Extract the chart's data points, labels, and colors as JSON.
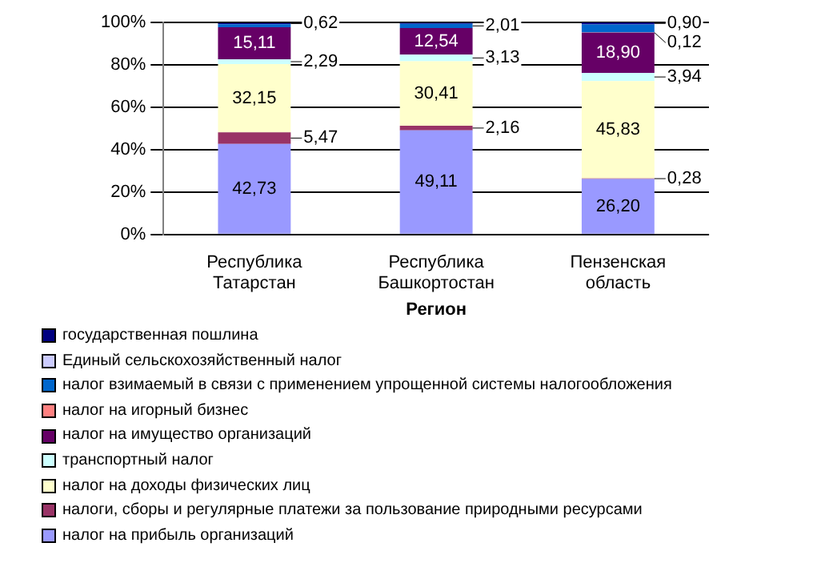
{
  "chart_data": {
    "type": "bar",
    "stacked": true,
    "xlabel": "Регион",
    "categories": [
      "Республика Татарстан",
      "Республика Башкортостан",
      "Пензенская область"
    ],
    "ylim": [
      0,
      100
    ],
    "yticks": [
      {
        "value": 0,
        "label": "0%"
      },
      {
        "value": 20,
        "label": "20%"
      },
      {
        "value": 40,
        "label": "40%"
      },
      {
        "value": 60,
        "label": "60%"
      },
      {
        "value": 80,
        "label": "80%"
      },
      {
        "value": 100,
        "label": "100%"
      }
    ],
    "grid": "y",
    "legend": "bottom left",
    "series": [
      {
        "name": "налог на прибыль организаций",
        "color": "#9999ff",
        "values": [
          42.73,
          49.11,
          26.2
        ],
        "value_labels": [
          "42,73",
          "49,11",
          "26,20"
        ]
      },
      {
        "name": "налоги, сборы и регулярные платежи за пользование природными ресурсами",
        "color": "#993366",
        "values": [
          5.47,
          2.16,
          0.28
        ],
        "value_labels": [
          "5,47",
          "2,16",
          "0,28"
        ]
      },
      {
        "name": "налог на доходы физических лиц",
        "color": "#ffffcc",
        "values": [
          32.15,
          30.41,
          45.83
        ],
        "value_labels": [
          "32,15",
          "30,41",
          "45,83"
        ]
      },
      {
        "name": "транспортный налог",
        "color": "#ccffff",
        "values": [
          2.29,
          3.13,
          3.94
        ],
        "value_labels": [
          "2,29",
          "3,13",
          "3,94"
        ]
      },
      {
        "name": "налог на имущество организаций",
        "color": "#660066",
        "values": [
          15.11,
          12.54,
          18.9
        ],
        "value_labels": [
          "15,11",
          "12,54",
          "18,90"
        ]
      },
      {
        "name": "налог на игорный бизнес",
        "color": "#ff8080",
        "values": [
          null,
          null,
          0.12
        ],
        "value_labels": [
          null,
          null,
          "0,12"
        ]
      },
      {
        "name": "налог  взимаемый в связи с применением упрощенной системы налогообложения",
        "color": "#0066cc",
        "values": [
          1.4,
          2.01,
          3.8
        ],
        "value_labels": [
          null,
          "2,01",
          null
        ]
      },
      {
        "name": "Единый сельскохозяйственный налог",
        "color": "#ccccff",
        "values": [
          0,
          0,
          0
        ],
        "value_labels": [
          null,
          null,
          null
        ]
      },
      {
        "name": "государственная пошлина",
        "color": "#000080",
        "values": [
          0.62,
          0.5,
          0.9
        ],
        "value_labels": [
          "0,62",
          null,
          "0,90"
        ]
      }
    ]
  }
}
